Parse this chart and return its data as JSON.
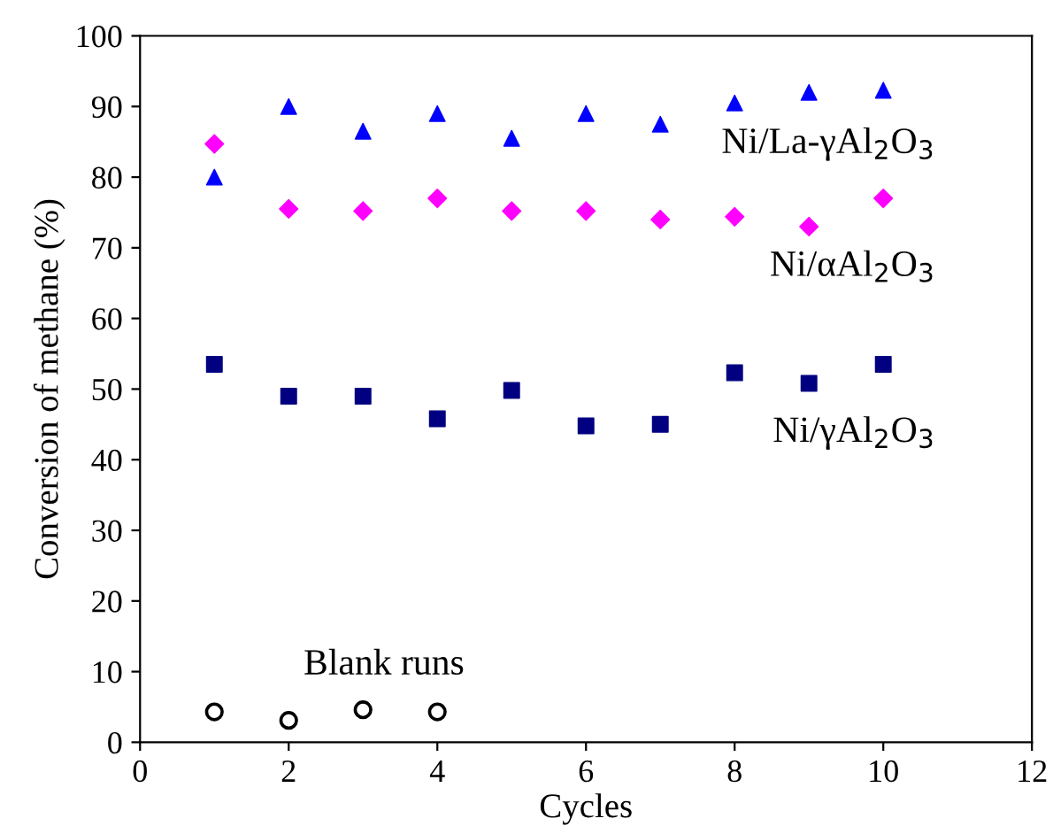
{
  "chart_data": {
    "type": "scatter",
    "xlabel": "Cycles",
    "ylabel": "Conversion of methane (%)",
    "xlim": [
      0,
      12
    ],
    "ylim": [
      0,
      100
    ],
    "xticks": [
      0,
      2,
      4,
      6,
      8,
      10,
      12
    ],
    "yticks": [
      0,
      10,
      20,
      30,
      40,
      50,
      60,
      70,
      80,
      90,
      100
    ],
    "grid": false,
    "legend": false,
    "series": [
      {
        "name": "Ni/La-γAl$_{2}$O$_{3}$",
        "color": "#0000ff",
        "marker": "triangle",
        "x": [
          1,
          2,
          3,
          4,
          5,
          6,
          7,
          8,
          9,
          10
        ],
        "values": [
          80,
          90,
          86.5,
          89,
          85.5,
          89,
          87.5,
          90.5,
          92,
          92.3
        ]
      },
      {
        "name": "Ni/αAl$_{2}$O$_{3}$",
        "color": "#ff00ff",
        "marker": "diamond",
        "x": [
          1,
          2,
          3,
          4,
          5,
          6,
          7,
          8,
          9,
          10
        ],
        "values": [
          84.7,
          75.5,
          75.2,
          77,
          75.2,
          75.2,
          74,
          74.4,
          73,
          77
        ]
      },
      {
        "name": "Ni/γAl$_{2}$O$_{3}$",
        "color": "#000080",
        "marker": "square",
        "x": [
          1,
          2,
          3,
          4,
          5,
          6,
          7,
          8,
          9,
          10
        ],
        "values": [
          53.5,
          49,
          49,
          45.8,
          49.8,
          44.8,
          45,
          52.3,
          50.8,
          53.5
        ]
      },
      {
        "name": "Blank runs",
        "color": "#000000",
        "marker": "circle",
        "x": [
          1,
          2,
          3,
          4
        ],
        "values": [
          4.3,
          3.1,
          4.6,
          4.3
        ]
      }
    ]
  }
}
